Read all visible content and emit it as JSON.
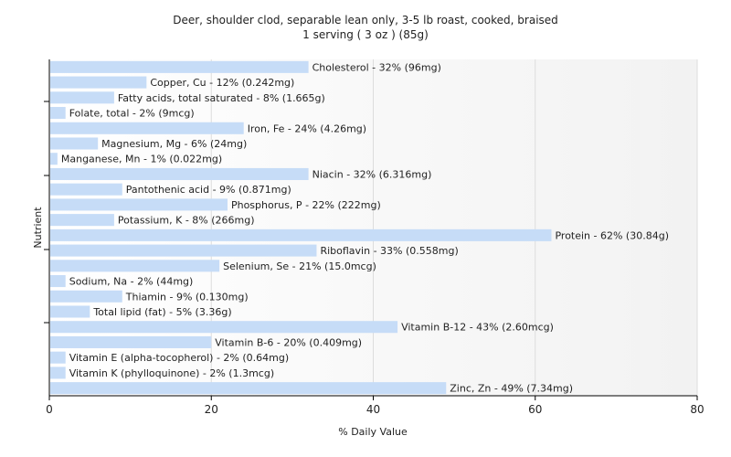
{
  "chart_data": {
    "type": "bar",
    "orientation": "horizontal",
    "title": "Deer, shoulder clod, separable lean only, 3-5 lb roast, cooked, braised",
    "subtitle": "1 serving ( 3 oz ) (85g)",
    "xlabel": "% Daily Value",
    "ylabel": "Nutrient",
    "xlim": [
      0,
      80
    ],
    "xticks": [
      "0",
      "20",
      "40",
      "60",
      "80"
    ],
    "grid": true,
    "bar_color": "#c6dcf7",
    "categories": [
      "Cholesterol",
      "Copper, Cu",
      "Fatty acids, total saturated",
      "Folate, total",
      "Iron, Fe",
      "Magnesium, Mg",
      "Manganese, Mn",
      "Niacin",
      "Pantothenic acid",
      "Phosphorus, P",
      "Potassium, K",
      "Protein",
      "Riboflavin",
      "Selenium, Se",
      "Sodium, Na",
      "Thiamin",
      "Total lipid (fat)",
      "Vitamin B-12",
      "Vitamin B-6",
      "Vitamin E (alpha-tocopherol)",
      "Vitamin K (phylloquinone)",
      "Zinc, Zn"
    ],
    "values": [
      32,
      12,
      8,
      2,
      24,
      6,
      1,
      32,
      9,
      22,
      8,
      62,
      33,
      21,
      2,
      9,
      5,
      43,
      20,
      2,
      2,
      49
    ],
    "labels": [
      "Cholesterol - 32% (96mg)",
      "Copper, Cu - 12% (0.242mg)",
      "Fatty acids, total saturated - 8% (1.665g)",
      "Folate, total - 2% (9mcg)",
      "Iron, Fe - 24% (4.26mg)",
      "Magnesium, Mg - 6% (24mg)",
      "Manganese, Mn - 1% (0.022mg)",
      "Niacin - 32% (6.316mg)",
      "Pantothenic acid - 9% (0.871mg)",
      "Phosphorus, P - 22% (222mg)",
      "Potassium, K - 8% (266mg)",
      "Protein - 62% (30.84g)",
      "Riboflavin - 33% (0.558mg)",
      "Selenium, Se - 21% (15.0mcg)",
      "Sodium, Na - 2% (44mg)",
      "Thiamin - 9% (0.130mg)",
      "Total lipid (fat) - 5% (3.36g)",
      "Vitamin B-12 - 43% (2.60mcg)",
      "Vitamin B-6 - 20% (0.409mg)",
      "Vitamin E (alpha-tocopherol) - 2% (0.64mg)",
      "Vitamin K (phylloquinone) - 2% (1.3mcg)",
      "Zinc, Zn - 49% (7.34mg)"
    ]
  }
}
